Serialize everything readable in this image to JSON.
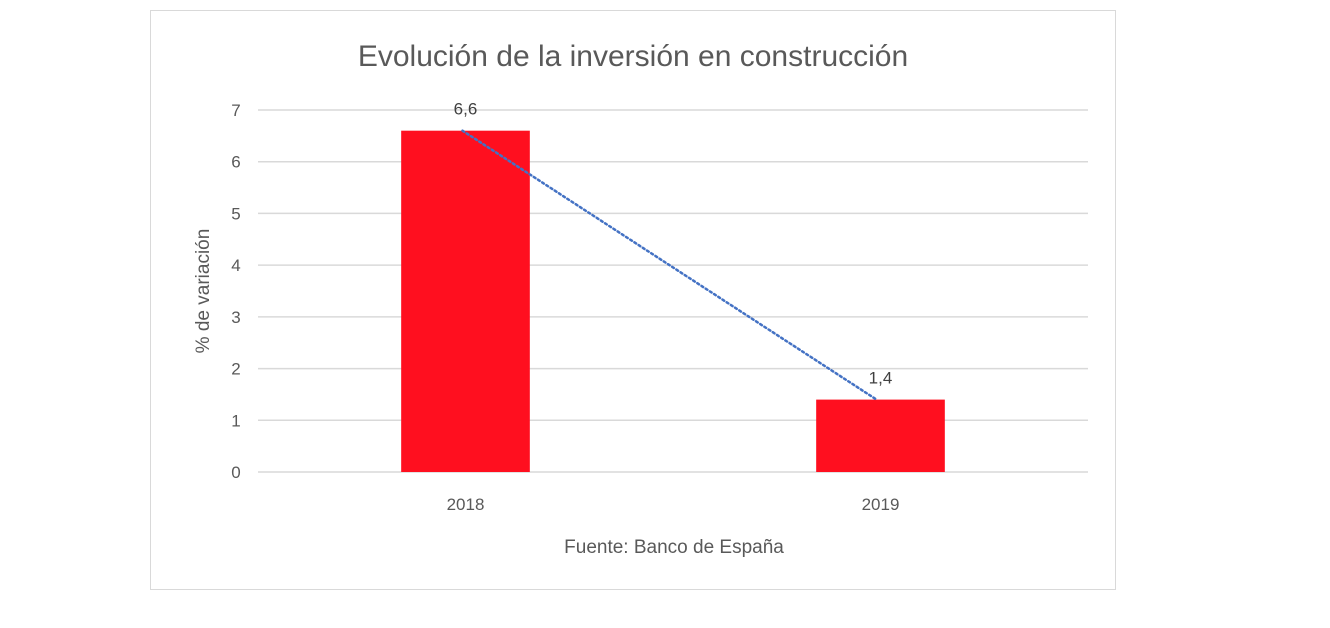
{
  "chart_data": {
    "type": "bar",
    "title": "Evolución de la inversión en construcción",
    "categories": [
      "2018",
      "2019"
    ],
    "values": [
      6.6,
      1.4
    ],
    "data_labels": [
      "6,6",
      "1,4"
    ],
    "ylabel": "% de variación",
    "xlabel": "",
    "ylim": [
      0,
      7
    ],
    "yticks": [
      "0",
      "1",
      "2",
      "3",
      "4",
      "5",
      "6",
      "7"
    ],
    "grid": true,
    "trendline": {
      "type": "linear",
      "style": "dotted"
    },
    "annotation": "Fuente: Banco de España",
    "colors": {
      "bar": "#ff0f1f",
      "trendline": "#4472c4",
      "grid": "#d9d9d9",
      "text": "#595959"
    }
  }
}
